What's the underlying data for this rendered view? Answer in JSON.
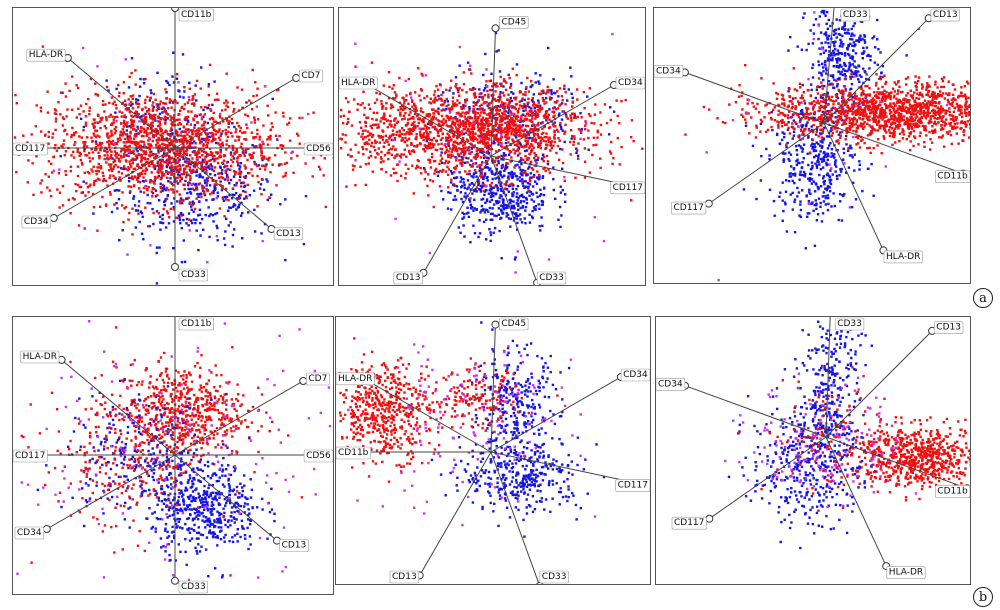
{
  "row_labels": [
    "a",
    "b"
  ],
  "colors": {
    "red": "#ee1111",
    "blue": "#1515e8",
    "magenta": "#cc33ee",
    "axis": "#444444"
  },
  "chart_data": [
    {
      "type": "scatter",
      "row": "a",
      "column": 1,
      "axes": [
        {
          "label": "CD11b",
          "angle": 90,
          "length": 1.0
        },
        {
          "label": "HLA-DR",
          "angle": 140,
          "length": 1.0
        },
        {
          "label": "CD7",
          "angle": 30,
          "length": 1.0
        },
        {
          "label": "CD117",
          "angle": 180,
          "length": 1.0
        },
        {
          "label": "CD56",
          "angle": 0,
          "length": 1.0
        },
        {
          "label": "CD34",
          "angle": 210,
          "length": 1.0
        },
        {
          "label": "CD13",
          "angle": 320,
          "length": 0.9
        },
        {
          "label": "CD33",
          "angle": 270,
          "length": 0.85
        }
      ],
      "clusters": [
        {
          "color": "blue",
          "cx": 0.15,
          "cy": -0.28,
          "sx": 0.28,
          "sy": 0.2,
          "n": 420
        },
        {
          "color": "blue",
          "cx": -0.1,
          "cy": 0.2,
          "sx": 0.25,
          "sy": 0.2,
          "n": 140
        },
        {
          "color": "red",
          "cx": -0.12,
          "cy": 0.02,
          "sx": 0.42,
          "sy": 0.2,
          "n": 1600
        },
        {
          "color": "magenta",
          "cx": 0.0,
          "cy": 0.0,
          "sx": 0.7,
          "sy": 0.6,
          "n": 45
        }
      ]
    },
    {
      "type": "scatter",
      "row": "a",
      "column": 2,
      "axes": [
        {
          "label": "CD45",
          "angle": 88,
          "length": 0.9
        },
        {
          "label": "HLA-DR",
          "angle": 150,
          "length": 1.0
        },
        {
          "label": "CD34",
          "angle": 30,
          "length": 1.0
        },
        {
          "label": "CD117",
          "angle": 348,
          "length": 1.0
        },
        {
          "label": "CD13",
          "angle": 240,
          "length": 0.95
        },
        {
          "label": "CD33",
          "angle": 290,
          "length": 0.95
        }
      ],
      "clusters": [
        {
          "color": "blue",
          "cx": 0.05,
          "cy": -0.22,
          "sx": 0.18,
          "sy": 0.16,
          "n": 520
        },
        {
          "color": "blue",
          "cx": 0.15,
          "cy": 0.28,
          "sx": 0.3,
          "sy": 0.18,
          "n": 260
        },
        {
          "color": "red",
          "cx": -0.25,
          "cy": 0.18,
          "sx": 0.48,
          "sy": 0.16,
          "n": 1400
        },
        {
          "color": "red",
          "cx": 0.1,
          "cy": 0.25,
          "sx": 0.22,
          "sy": 0.12,
          "n": 350
        },
        {
          "color": "magenta",
          "cx": 0.0,
          "cy": 0.1,
          "sx": 0.7,
          "sy": 0.5,
          "n": 40
        }
      ]
    },
    {
      "type": "scatter",
      "row": "a",
      "column": 3,
      "axes": [
        {
          "label": "CD33",
          "angle": 85,
          "length": 1.0
        },
        {
          "label": "CD13",
          "angle": 45,
          "length": 1.0
        },
        {
          "label": "CD34",
          "angle": 160,
          "length": 1.0
        },
        {
          "label": "CD11b",
          "angle": 340,
          "length": 1.0
        },
        {
          "label": "CD117",
          "angle": 215,
          "length": 0.95
        },
        {
          "label": "HLA-DR",
          "angle": 295,
          "length": 0.95
        }
      ],
      "clusters": [
        {
          "color": "blue",
          "cx": 0.12,
          "cy": 0.45,
          "sx": 0.12,
          "sy": 0.18,
          "n": 340
        },
        {
          "color": "blue",
          "cx": -0.08,
          "cy": -0.25,
          "sx": 0.15,
          "sy": 0.2,
          "n": 380
        },
        {
          "color": "red",
          "cx": 0.45,
          "cy": 0.08,
          "sx": 0.42,
          "sy": 0.1,
          "n": 1500
        },
        {
          "color": "magenta",
          "cx": 0.1,
          "cy": 0.0,
          "sx": 0.5,
          "sy": 0.5,
          "n": 30
        }
      ]
    },
    {
      "type": "scatter",
      "row": "b",
      "column": 1,
      "axes": [
        {
          "label": "CD11b",
          "angle": 90,
          "length": 1.0
        },
        {
          "label": "HLA-DR",
          "angle": 140,
          "length": 1.0
        },
        {
          "label": "CD7",
          "angle": 30,
          "length": 1.0
        },
        {
          "label": "CD117",
          "angle": 180,
          "length": 1.0
        },
        {
          "label": "CD56",
          "angle": 0,
          "length": 1.0
        },
        {
          "label": "CD34",
          "angle": 210,
          "length": 1.0
        },
        {
          "label": "CD13",
          "angle": 320,
          "length": 0.9
        },
        {
          "label": "CD33",
          "angle": 270,
          "length": 0.85
        }
      ],
      "clusters": [
        {
          "color": "red",
          "cx": 0.03,
          "cy": 0.3,
          "sx": 0.22,
          "sy": 0.16,
          "n": 600
        },
        {
          "color": "blue",
          "cx": 0.2,
          "cy": -0.35,
          "sx": 0.18,
          "sy": 0.15,
          "n": 480
        },
        {
          "color": "blue",
          "cx": -0.25,
          "cy": 0.0,
          "sx": 0.25,
          "sy": 0.2,
          "n": 250
        },
        {
          "color": "red",
          "cx": -0.35,
          "cy": -0.05,
          "sx": 0.28,
          "sy": 0.25,
          "n": 250
        },
        {
          "color": "magenta",
          "cx": 0.0,
          "cy": 0.0,
          "sx": 0.55,
          "sy": 0.45,
          "n": 160
        }
      ]
    },
    {
      "type": "scatter",
      "row": "b",
      "column": 2,
      "axes": [
        {
          "label": "CD45",
          "angle": 88,
          "length": 0.85
        },
        {
          "label": "HLA-DR",
          "angle": 150,
          "length": 0.95
        },
        {
          "label": "CD11b",
          "angle": 180,
          "length": 0.95
        },
        {
          "label": "CD34",
          "angle": 30,
          "length": 1.0
        },
        {
          "label": "CD117",
          "angle": 348,
          "length": 1.0
        },
        {
          "label": "CD13",
          "angle": 240,
          "length": 0.95
        },
        {
          "label": "CD33",
          "angle": 290,
          "length": 0.95
        }
      ],
      "clusters": [
        {
          "color": "red",
          "cx": -0.72,
          "cy": 0.28,
          "sx": 0.16,
          "sy": 0.16,
          "n": 520
        },
        {
          "color": "blue",
          "cx": 0.15,
          "cy": 0.3,
          "sx": 0.15,
          "sy": 0.2,
          "n": 300
        },
        {
          "color": "blue",
          "cx": 0.2,
          "cy": -0.15,
          "sx": 0.2,
          "sy": 0.12,
          "n": 320
        },
        {
          "color": "red",
          "cx": -0.1,
          "cy": 0.35,
          "sx": 0.15,
          "sy": 0.1,
          "n": 150
        },
        {
          "color": "magenta",
          "cx": -0.15,
          "cy": 0.2,
          "sx": 0.35,
          "sy": 0.3,
          "n": 140
        }
      ]
    },
    {
      "type": "scatter",
      "row": "b",
      "column": 3,
      "axes": [
        {
          "label": "CD33",
          "angle": 88,
          "length": 1.0
        },
        {
          "label": "CD13",
          "angle": 45,
          "length": 1.0
        },
        {
          "label": "CD34",
          "angle": 160,
          "length": 1.0
        },
        {
          "label": "CD11b",
          "angle": 340,
          "length": 1.0
        },
        {
          "label": "CD117",
          "angle": 215,
          "length": 0.95
        },
        {
          "label": "HLA-DR",
          "angle": 295,
          "length": 0.95
        }
      ],
      "clusters": [
        {
          "color": "red",
          "cx": 0.6,
          "cy": -0.12,
          "sx": 0.22,
          "sy": 0.1,
          "n": 700
        },
        {
          "color": "blue",
          "cx": 0.02,
          "cy": 0.35,
          "sx": 0.1,
          "sy": 0.3,
          "n": 300
        },
        {
          "color": "blue",
          "cx": -0.15,
          "cy": -0.18,
          "sx": 0.18,
          "sy": 0.2,
          "n": 350
        },
        {
          "color": "magenta",
          "cx": 0.0,
          "cy": -0.02,
          "sx": 0.25,
          "sy": 0.2,
          "n": 160
        },
        {
          "color": "red",
          "cx": 0.0,
          "cy": 0.0,
          "sx": 0.2,
          "sy": 0.2,
          "n": 100
        }
      ]
    }
  ]
}
